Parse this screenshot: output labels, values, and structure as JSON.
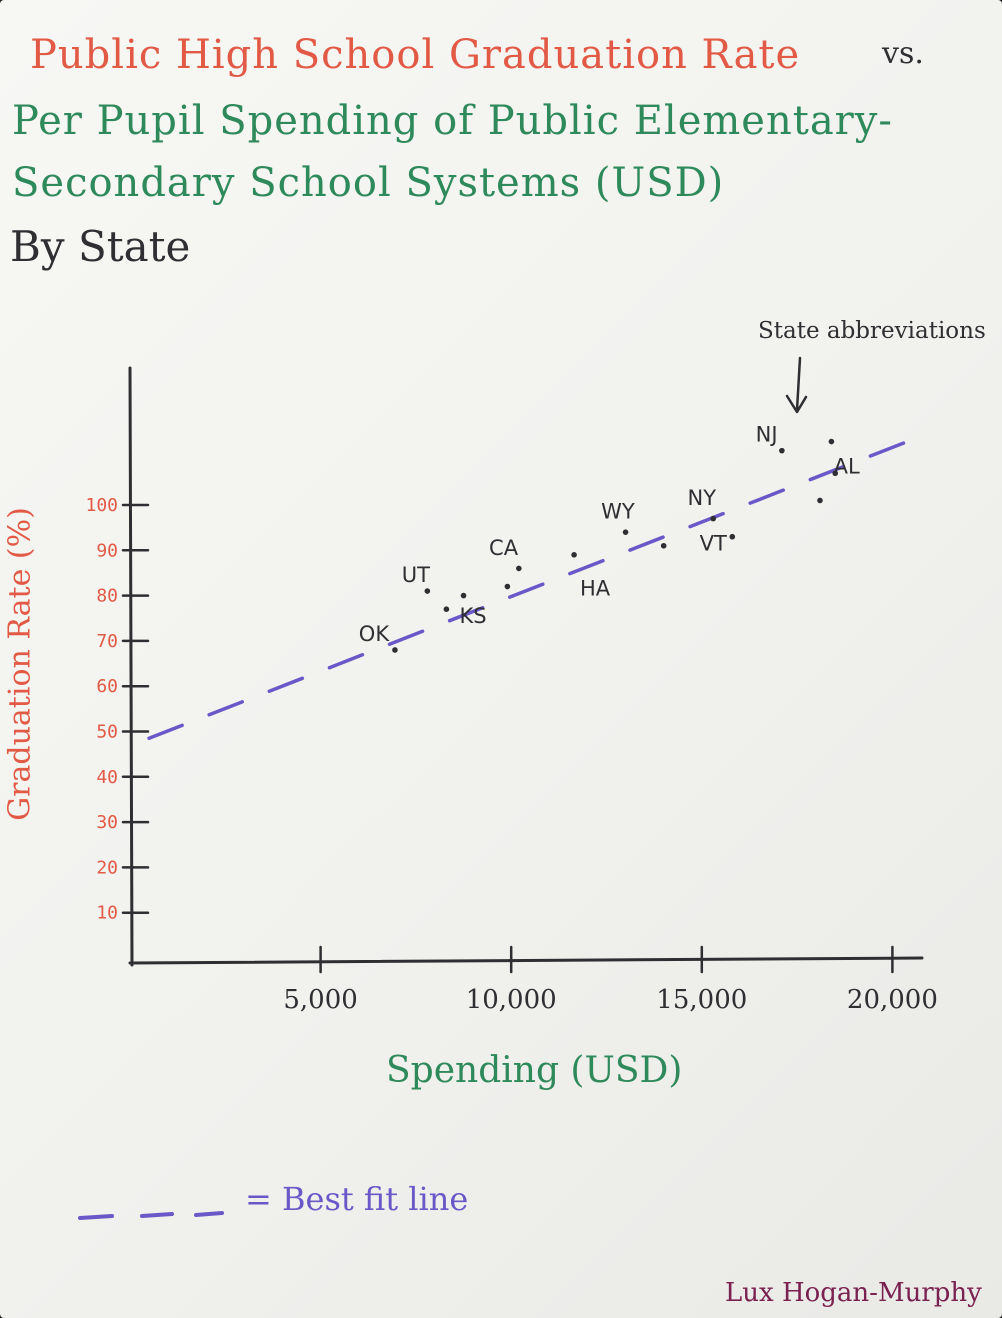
{
  "title": {
    "line1": "Public High School Graduation Rate",
    "vs": "vs.",
    "line2": "Per Pupil Spending of Public Elementary-",
    "line3": "Secondary School Systems (USD)",
    "line4": "By State"
  },
  "annotation": {
    "text": "State abbreviations"
  },
  "legend": {
    "text": "= Best fit line"
  },
  "author": "Lux Hogan-Murphy",
  "colors": {
    "title_red": "#e25a45",
    "title_green": "#2e8a5a",
    "axis": "#2f2f33",
    "fit_line": "#6a58c8",
    "author": "#7a2150"
  },
  "chart_data": {
    "type": "scatter",
    "xlabel": "Spending (USD)",
    "ylabel": "Graduation Rate (%)",
    "x_ticks": [
      5000,
      10000,
      15000,
      20000
    ],
    "x_tick_labels": [
      "5,000",
      "10,000",
      "15,000",
      "20,000"
    ],
    "y_ticks": [
      10,
      20,
      30,
      40,
      50,
      60,
      70,
      80,
      90,
      100
    ],
    "y_tick_labels": [
      "10",
      "20",
      "30",
      "40",
      "50",
      "60",
      "70",
      "80",
      "90",
      "100"
    ],
    "points": [
      {
        "x": 6950,
        "y": 68
      },
      {
        "x": 7800,
        "y": 81
      },
      {
        "x": 8300,
        "y": 77
      },
      {
        "x": 8750,
        "y": 80
      },
      {
        "x": 9900,
        "y": 82
      },
      {
        "x": 10200,
        "y": 86
      },
      {
        "x": 11650,
        "y": 89
      },
      {
        "x": 13000,
        "y": 94
      },
      {
        "x": 14000,
        "y": 91
      },
      {
        "x": 15300,
        "y": 97
      },
      {
        "x": 15800,
        "y": 93
      },
      {
        "x": 17100,
        "y": 112
      },
      {
        "x": 18100,
        "y": 101
      },
      {
        "x": 18500,
        "y": 107
      },
      {
        "x": 18400,
        "y": 114
      }
    ],
    "state_labels": [
      {
        "text": "OK",
        "x": 6400,
        "y": 70
      },
      {
        "text": "UT",
        "x": 7500,
        "y": 83
      },
      {
        "text": "KS",
        "x": 9000,
        "y": 74
      },
      {
        "text": "CA",
        "x": 9800,
        "y": 89
      },
      {
        "text": "HA",
        "x": 12200,
        "y": 80
      },
      {
        "text": "WY",
        "x": 12800,
        "y": 97
      },
      {
        "text": "NY",
        "x": 15000,
        "y": 100
      },
      {
        "text": "VT",
        "x": 15300,
        "y": 90
      },
      {
        "text": "NJ",
        "x": 16700,
        "y": 114
      },
      {
        "text": "AL",
        "x": 18800,
        "y": 107
      }
    ],
    "fit_line": {
      "x0": 500,
      "y0": 48.5,
      "x1": 21000,
      "y1": 116
    }
  }
}
